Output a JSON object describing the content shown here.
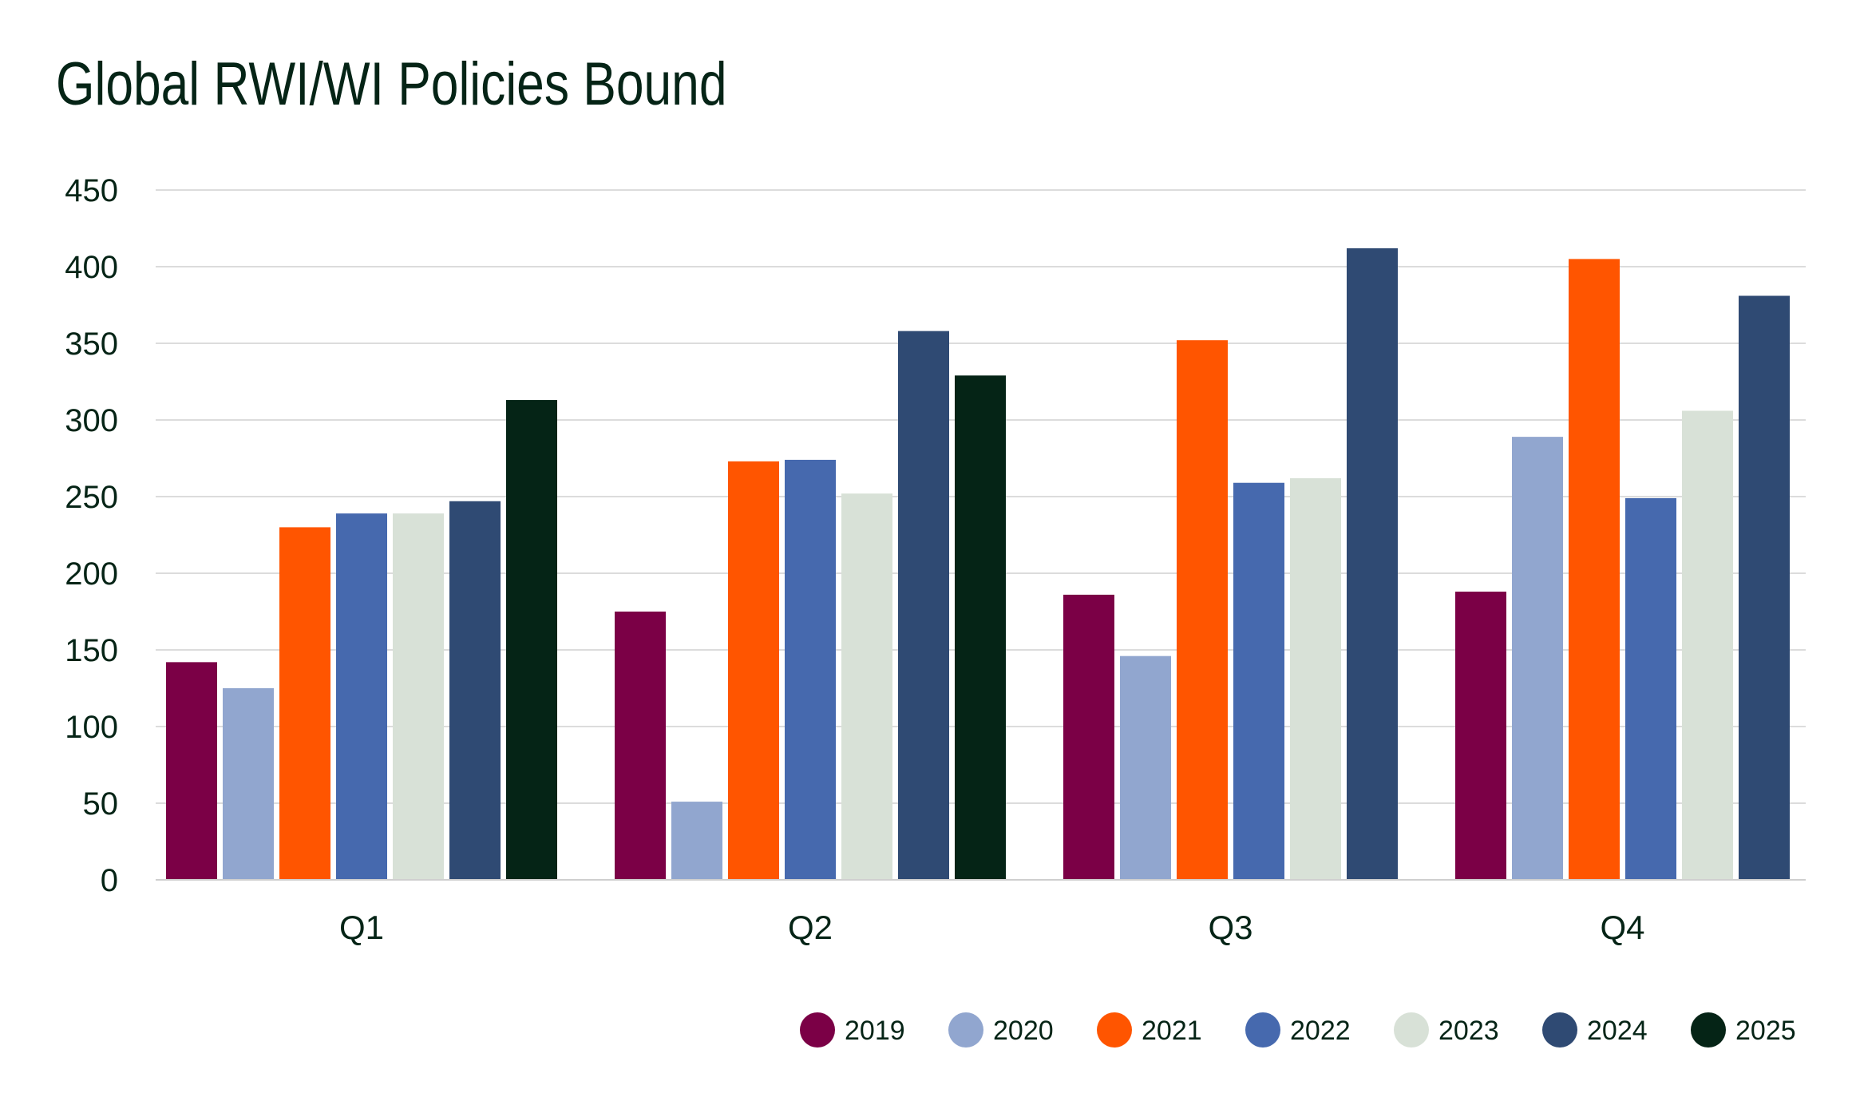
{
  "chart_data": {
    "type": "bar",
    "title": "Global RWI/WI Policies Bound",
    "xlabel": "",
    "ylabel": "",
    "ylim": [
      0,
      450
    ],
    "yticks": [
      0,
      50,
      100,
      150,
      200,
      250,
      300,
      350,
      400,
      450
    ],
    "grid": true,
    "legend_position": "bottom-right",
    "categories": [
      "Q1",
      "Q2",
      "Q3",
      "Q4"
    ],
    "series": [
      {
        "name": "2019",
        "color": "#7B0046",
        "values": [
          142,
          175,
          186,
          188
        ]
      },
      {
        "name": "2020",
        "color": "#91A6CF",
        "values": [
          125,
          51,
          146,
          289
        ]
      },
      {
        "name": "2021",
        "color": "#FF5500",
        "values": [
          230,
          273,
          352,
          405
        ]
      },
      {
        "name": "2022",
        "color": "#4669AE",
        "values": [
          239,
          274,
          259,
          249
        ]
      },
      {
        "name": "2023",
        "color": "#D8E1D7",
        "values": [
          239,
          252,
          262,
          306
        ]
      },
      {
        "name": "2024",
        "color": "#2F4A73",
        "values": [
          247,
          358,
          412,
          381
        ]
      },
      {
        "name": "2025",
        "color": "#052416",
        "values": [
          313,
          329,
          null,
          null
        ]
      }
    ]
  }
}
